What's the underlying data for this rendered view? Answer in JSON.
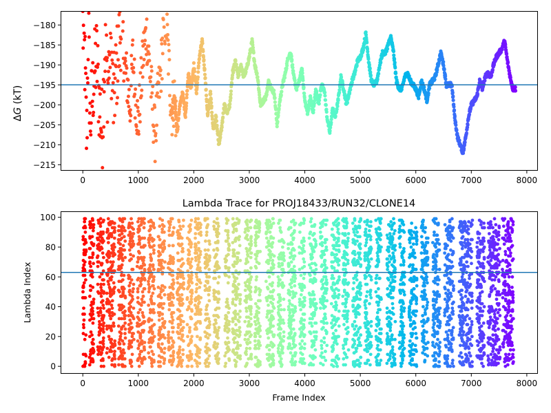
{
  "chart_data": [
    {
      "type": "scatter",
      "title": "",
      "xlabel": "",
      "ylabel": "ΔG (kT)",
      "ylabel_parts": {
        "delta": "Δ",
        "var": "G",
        "unit": " (kT)"
      },
      "xlim": [
        -400,
        8200
      ],
      "ylim": [
        -216.5,
        -176.5
      ],
      "xticks": [
        0,
        1000,
        2000,
        3000,
        4000,
        5000,
        6000,
        7000,
        8000
      ],
      "yticks": [
        -215,
        -210,
        -205,
        -200,
        -195,
        -190,
        -185,
        -180
      ],
      "tick_labels_x": [
        "0",
        "1000",
        "2000",
        "3000",
        "4000",
        "5000",
        "6000",
        "7000",
        "8000"
      ],
      "tick_labels_y": [
        "−215",
        "−210",
        "−205",
        "−200",
        "−195",
        "−190",
        "−185",
        "−180"
      ],
      "hline": {
        "y": -195,
        "color": "#1f77b4"
      },
      "colormap": "rainbow (reversed: frame 0 red → last frame violet)",
      "trace": [
        [
          0,
          -180
        ],
        [
          40,
          -190
        ],
        [
          70,
          -210
        ],
        [
          100,
          -178
        ],
        [
          130,
          -205
        ],
        [
          160,
          -200
        ],
        [
          200,
          -193
        ],
        [
          250,
          -188
        ],
        [
          300,
          -200
        ],
        [
          350,
          -207
        ],
        [
          400,
          -185
        ],
        [
          450,
          -195
        ],
        [
          500,
          -182
        ],
        [
          550,
          -200
        ],
        [
          600,
          -192
        ],
        [
          650,
          -186
        ],
        [
          700,
          -178
        ],
        [
          750,
          -190
        ],
        [
          800,
          -194
        ],
        [
          850,
          -201
        ],
        [
          900,
          -188
        ],
        [
          950,
          -198
        ],
        [
          1000,
          -205
        ],
        [
          1050,
          -195
        ],
        [
          1100,
          -186
        ],
        [
          1150,
          -182
        ],
        [
          1200,
          -190
        ],
        [
          1250,
          -199
        ],
        [
          1300,
          -208
        ],
        [
          1350,
          -199
        ],
        [
          1400,
          -193
        ],
        [
          1450,
          -182
        ],
        [
          1500,
          -178
        ],
        [
          1550,
          -190
        ],
        [
          1600,
          -202
        ],
        [
          1650,
          -198
        ],
        [
          1700,
          -207
        ],
        [
          1750,
          -200
        ],
        [
          1800,
          -197
        ],
        [
          1850,
          -203
        ],
        [
          1900,
          -192
        ],
        [
          1950,
          -196
        ],
        [
          2000,
          -190
        ],
        [
          2050,
          -197
        ],
        [
          2100,
          -188
        ],
        [
          2150,
          -184
        ],
        [
          2200,
          -192
        ],
        [
          2250,
          -203
        ],
        [
          2300,
          -197
        ],
        [
          2350,
          -206
        ],
        [
          2400,
          -203
        ],
        [
          2450,
          -210
        ],
        [
          2500,
          -206
        ],
        [
          2550,
          -200
        ],
        [
          2600,
          -202
        ],
        [
          2650,
          -200
        ],
        [
          2700,
          -192
        ],
        [
          2750,
          -189
        ],
        [
          2800,
          -193
        ],
        [
          2850,
          -190
        ],
        [
          2900,
          -193
        ],
        [
          2950,
          -191
        ],
        [
          3000,
          -188
        ],
        [
          3050,
          -184
        ],
        [
          3100,
          -190
        ],
        [
          3150,
          -193
        ],
        [
          3200,
          -200
        ],
        [
          3250,
          -199
        ],
        [
          3300,
          -198
        ],
        [
          3350,
          -194
        ],
        [
          3400,
          -196
        ],
        [
          3450,
          -197
        ],
        [
          3500,
          -205
        ],
        [
          3550,
          -199
        ],
        [
          3600,
          -195
        ],
        [
          3650,
          -192
        ],
        [
          3700,
          -188
        ],
        [
          3750,
          -187
        ],
        [
          3800,
          -193
        ],
        [
          3850,
          -196
        ],
        [
          3900,
          -194
        ],
        [
          3950,
          -191
        ],
        [
          4000,
          -199
        ],
        [
          4050,
          -202
        ],
        [
          4100,
          -198
        ],
        [
          4150,
          -202
        ],
        [
          4200,
          -196
        ],
        [
          4250,
          -200
        ],
        [
          4300,
          -195
        ],
        [
          4350,
          -196
        ],
        [
          4400,
          -203
        ],
        [
          4450,
          -207
        ],
        [
          4500,
          -201
        ],
        [
          4550,
          -203
        ],
        [
          4600,
          -199
        ],
        [
          4650,
          -193
        ],
        [
          4700,
          -196
        ],
        [
          4750,
          -200
        ],
        [
          4800,
          -197
        ],
        [
          4850,
          -194
        ],
        [
          4900,
          -192
        ],
        [
          4950,
          -189
        ],
        [
          5000,
          -188
        ],
        [
          5050,
          -186
        ],
        [
          5100,
          -182
        ],
        [
          5150,
          -189
        ],
        [
          5200,
          -194
        ],
        [
          5250,
          -195
        ],
        [
          5300,
          -194
        ],
        [
          5350,
          -190
        ],
        [
          5400,
          -187
        ],
        [
          5450,
          -187
        ],
        [
          5500,
          -185
        ],
        [
          5550,
          -183
        ],
        [
          5600,
          -187
        ],
        [
          5650,
          -194
        ],
        [
          5700,
          -196
        ],
        [
          5750,
          -196
        ],
        [
          5800,
          -193
        ],
        [
          5850,
          -192
        ],
        [
          5900,
          -194
        ],
        [
          5950,
          -195
        ],
        [
          6000,
          -196
        ],
        [
          6050,
          -198
        ],
        [
          6100,
          -194
        ],
        [
          6150,
          -196
        ],
        [
          6200,
          -199
        ],
        [
          6250,
          -195
        ],
        [
          6300,
          -194
        ],
        [
          6350,
          -193
        ],
        [
          6400,
          -190
        ],
        [
          6450,
          -187
        ],
        [
          6500,
          -190
        ],
        [
          6550,
          -195
        ],
        [
          6600,
          -195
        ],
        [
          6650,
          -195
        ],
        [
          6700,
          -203
        ],
        [
          6750,
          -208
        ],
        [
          6800,
          -210
        ],
        [
          6850,
          -212
        ],
        [
          6900,
          -208
        ],
        [
          6950,
          -203
        ],
        [
          7000,
          -200
        ],
        [
          7050,
          -199
        ],
        [
          7100,
          -198
        ],
        [
          7150,
          -194
        ],
        [
          7200,
          -196
        ],
        [
          7250,
          -193
        ],
        [
          7300,
          -192
        ],
        [
          7350,
          -193
        ],
        [
          7400,
          -190
        ],
        [
          7450,
          -188
        ],
        [
          7500,
          -187
        ],
        [
          7550,
          -186
        ],
        [
          7600,
          -184
        ],
        [
          7650,
          -189
        ],
        [
          7700,
          -193
        ],
        [
          7750,
          -196
        ],
        [
          7800,
          -196
        ]
      ]
    },
    {
      "type": "scatter",
      "title": "Lambda Trace for PROJ18433/RUN32/CLONE14",
      "xlabel": "Frame Index",
      "ylabel": "Lambda Index",
      "xlim": [
        -400,
        8200
      ],
      "ylim": [
        -5,
        104
      ],
      "xticks": [
        0,
        1000,
        2000,
        3000,
        4000,
        5000,
        6000,
        7000,
        8000
      ],
      "yticks": [
        0,
        20,
        40,
        60,
        80,
        100
      ],
      "tick_labels_x": [
        "0",
        "1000",
        "2000",
        "3000",
        "4000",
        "5000",
        "6000",
        "7000",
        "8000"
      ],
      "tick_labels_y": [
        "0",
        "20",
        "40",
        "60",
        "80",
        "100"
      ],
      "hline": {
        "y": 63,
        "color": "#1f77b4"
      },
      "colormap": "rainbow (reversed: frame 0 red → last frame violet)",
      "sweeps": [
        {
          "x": 0,
          "w": 60
        },
        {
          "x": 120,
          "w": 80
        },
        {
          "x": 260,
          "w": 120
        },
        {
          "x": 430,
          "w": 150
        },
        {
          "x": 640,
          "w": 130
        },
        {
          "x": 820,
          "w": 100
        },
        {
          "x": 980,
          "w": 140
        },
        {
          "x": 1180,
          "w": 110
        },
        {
          "x": 1360,
          "w": 120
        },
        {
          "x": 1540,
          "w": 100
        },
        {
          "x": 1700,
          "w": 120
        },
        {
          "x": 1880,
          "w": 90
        },
        {
          "x": 2020,
          "w": 110
        },
        {
          "x": 2200,
          "w": 90
        },
        {
          "x": 2360,
          "w": 100
        },
        {
          "x": 2560,
          "w": 80
        },
        {
          "x": 2700,
          "w": 140
        },
        {
          "x": 2920,
          "w": 120
        },
        {
          "x": 3100,
          "w": 100
        },
        {
          "x": 3300,
          "w": 150
        },
        {
          "x": 3520,
          "w": 110
        },
        {
          "x": 3700,
          "w": 140
        },
        {
          "x": 3900,
          "w": 100
        },
        {
          "x": 4080,
          "w": 130
        },
        {
          "x": 4280,
          "w": 120
        },
        {
          "x": 4480,
          "w": 140
        },
        {
          "x": 4680,
          "w": 110
        },
        {
          "x": 4860,
          "w": 150
        },
        {
          "x": 5080,
          "w": 120
        },
        {
          "x": 5280,
          "w": 100
        },
        {
          "x": 5480,
          "w": 150
        },
        {
          "x": 5700,
          "w": 100
        },
        {
          "x": 5880,
          "w": 140
        },
        {
          "x": 6100,
          "w": 120
        },
        {
          "x": 6300,
          "w": 140
        },
        {
          "x": 6520,
          "w": 160
        },
        {
          "x": 6780,
          "w": 240
        },
        {
          "x": 7100,
          "w": 140
        },
        {
          "x": 7300,
          "w": 220
        },
        {
          "x": 7560,
          "w": 200
        }
      ]
    }
  ]
}
